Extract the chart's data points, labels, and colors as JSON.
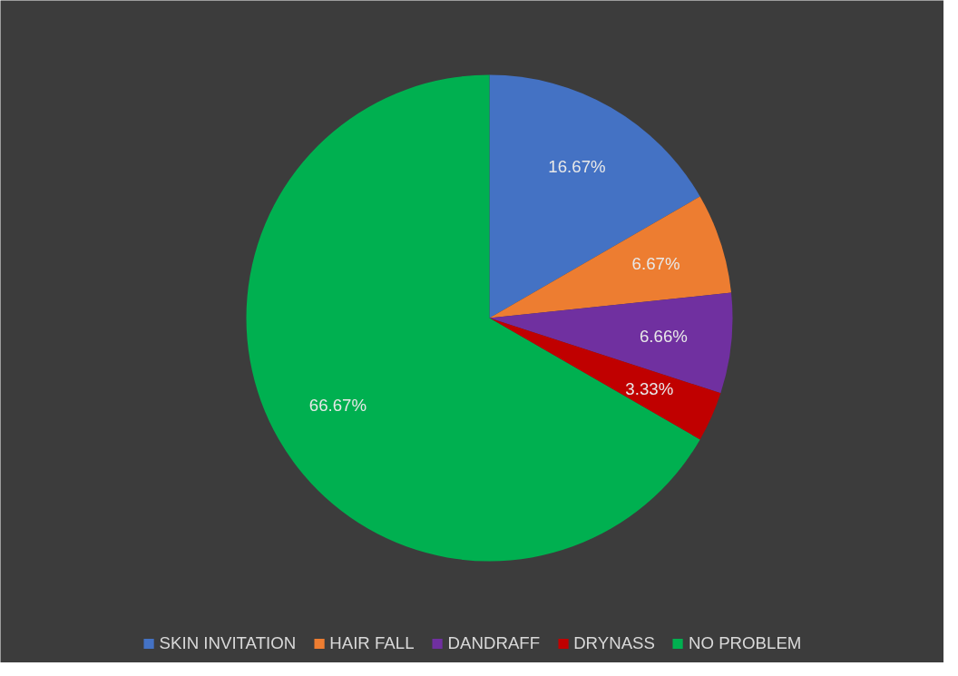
{
  "chart_data": {
    "type": "pie",
    "categories": [
      "SKIN INVITATION",
      "HAIR FALL",
      "DANDRAFF",
      "DRYNASS",
      "NO PROBLEM"
    ],
    "values": [
      16.67,
      6.67,
      6.66,
      3.33,
      66.67
    ],
    "colors": [
      "#4472c4",
      "#ed7d31",
      "#7030a0",
      "#c00000",
      "#00b050"
    ],
    "value_labels": [
      "16.67%",
      "6.67%",
      "6.66%",
      "3.33%",
      "66.67%"
    ],
    "legend": "bottom"
  }
}
